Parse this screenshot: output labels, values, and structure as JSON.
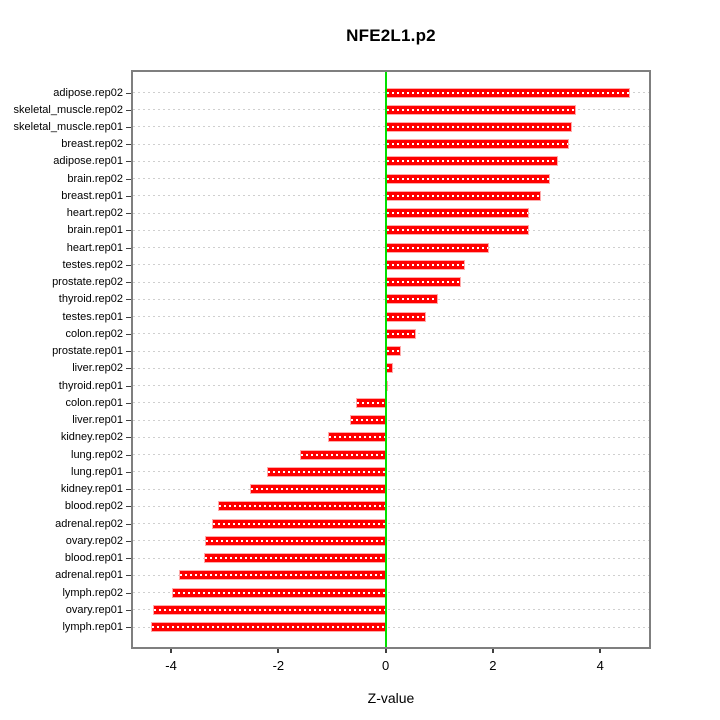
{
  "chart_data": {
    "type": "bar",
    "orientation": "horizontal",
    "title": "NFE2L1.p2",
    "xlabel": "Z-value",
    "ylabel": "",
    "xlim": [
      -4.71,
      4.91
    ],
    "xticks": [
      -4,
      -2,
      0,
      2,
      4
    ],
    "grid": true,
    "legend": "none",
    "zero_line": 0,
    "categories": [
      "adipose.rep02",
      "skeletal_muscle.rep02",
      "skeletal_muscle.rep01",
      "breast.rep02",
      "adipose.rep01",
      "brain.rep02",
      "breast.rep01",
      "heart.rep02",
      "brain.rep01",
      "heart.rep01",
      "testes.rep02",
      "prostate.rep02",
      "thyroid.rep02",
      "testes.rep01",
      "colon.rep02",
      "prostate.rep01",
      "liver.rep02",
      "thyroid.rep01",
      "colon.rep01",
      "liver.rep01",
      "kidney.rep02",
      "lung.rep02",
      "lung.rep01",
      "kidney.rep01",
      "blood.rep02",
      "adrenal.rep02",
      "ovary.rep02",
      "blood.rep01",
      "adrenal.rep01",
      "lymph.rep02",
      "ovary.rep01",
      "lymph.rep01"
    ],
    "values": [
      4.56,
      3.55,
      3.48,
      3.42,
      3.21,
      3.07,
      2.9,
      2.68,
      2.67,
      1.93,
      1.48,
      1.41,
      0.97,
      0.76,
      0.56,
      0.28,
      0.13,
      0.04,
      -0.56,
      -0.66,
      -1.07,
      -1.6,
      -2.21,
      -2.52,
      -3.12,
      -3.23,
      -3.36,
      -3.38,
      -3.86,
      -3.99,
      -4.34,
      -4.37
    ],
    "colors": {
      "bar_fill": "#ff0000",
      "bar_border": "#ffaaaa",
      "bar_center_dash": "#ffffff",
      "zero_line": "#00e000",
      "gridline": "#cfcfcf",
      "plot_border": "#7f7f7f",
      "text": "#000000"
    }
  }
}
